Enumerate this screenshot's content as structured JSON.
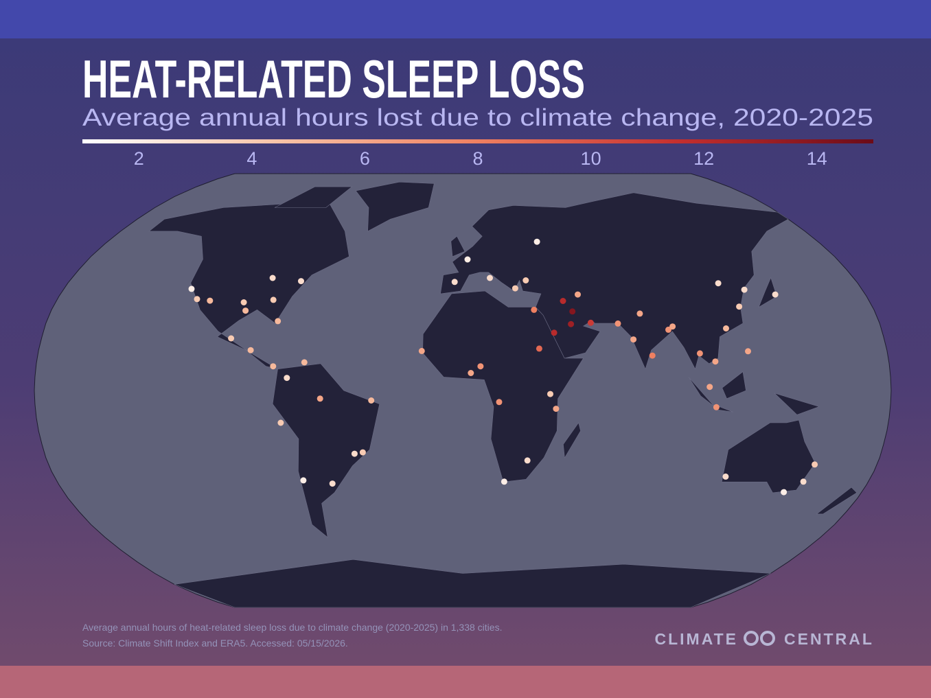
{
  "header": {
    "title": "HEAT-RELATED SLEEP LOSS",
    "subtitle": "Average annual hours lost due to climate change, 2020-2025"
  },
  "legend": {
    "lim": [
      1,
      15
    ],
    "ticks": [
      2,
      4,
      6,
      8,
      10,
      12,
      14
    ],
    "colors": [
      "#ffffff",
      "#f7c2a6",
      "#ef8061",
      "#c5302f",
      "#6b0b18"
    ]
  },
  "map": {
    "points": [
      {
        "lon": -74,
        "lat": 40.7,
        "value": 3
      },
      {
        "lon": -87.6,
        "lat": 41.9,
        "value": 3
      },
      {
        "lon": -118,
        "lat": 34,
        "value": 4
      },
      {
        "lon": -95,
        "lat": 29.7,
        "value": 5
      },
      {
        "lon": -80,
        "lat": 25.8,
        "value": 5
      },
      {
        "lon": -84,
        "lat": 33.7,
        "value": 4
      },
      {
        "lon": -96.8,
        "lat": 32.8,
        "value": 4
      },
      {
        "lon": -112,
        "lat": 33.4,
        "value": 5
      },
      {
        "lon": -122.4,
        "lat": 37.8,
        "value": 2
      },
      {
        "lon": -99,
        "lat": 19.4,
        "value": 4
      },
      {
        "lon": -90,
        "lat": 15,
        "value": 5
      },
      {
        "lon": -80,
        "lat": 9,
        "value": 5
      },
      {
        "lon": -43,
        "lat": -23,
        "value": 4
      },
      {
        "lon": -46.6,
        "lat": -23.5,
        "value": 3
      },
      {
        "lon": -58,
        "lat": -34.6,
        "value": 3
      },
      {
        "lon": -70.6,
        "lat": -33.4,
        "value": 2
      },
      {
        "lon": -77,
        "lat": -12,
        "value": 4
      },
      {
        "lon": -74,
        "lat": 4.7,
        "value": 3
      },
      {
        "lon": -60,
        "lat": -3,
        "value": 6
      },
      {
        "lon": -38.5,
        "lat": -3.7,
        "value": 5
      },
      {
        "lon": -66.9,
        "lat": 10.5,
        "value": 5
      },
      {
        "lon": -3.7,
        "lat": 40.4,
        "value": 3
      },
      {
        "lon": 2.3,
        "lat": 48.9,
        "value": 2
      },
      {
        "lon": 12.5,
        "lat": 41.9,
        "value": 3
      },
      {
        "lon": 37.6,
        "lat": 55.8,
        "value": 2
      },
      {
        "lon": 28.9,
        "lat": 41,
        "value": 4
      },
      {
        "lon": 23.7,
        "lat": 38,
        "value": 4
      },
      {
        "lon": 46.7,
        "lat": 24.7,
        "value": 13
      },
      {
        "lon": 47.9,
        "lat": 29.4,
        "value": 14
      },
      {
        "lon": 55.3,
        "lat": 25.2,
        "value": 11
      },
      {
        "lon": 44.4,
        "lat": 33.3,
        "value": 12
      },
      {
        "lon": 39.2,
        "lat": 21.5,
        "value": 12
      },
      {
        "lon": 31.2,
        "lat": 30,
        "value": 8
      },
      {
        "lon": 51.4,
        "lat": 35.7,
        "value": 6
      },
      {
        "lon": 3.4,
        "lat": 6.5,
        "value": 6
      },
      {
        "lon": -17.4,
        "lat": 14.7,
        "value": 6
      },
      {
        "lon": 32.5,
        "lat": 15.6,
        "value": 9
      },
      {
        "lon": 36.8,
        "lat": -1.3,
        "value": 4
      },
      {
        "lon": 28,
        "lat": -26,
        "value": 3
      },
      {
        "lon": 18.4,
        "lat": -33.9,
        "value": 2
      },
      {
        "lon": 15.3,
        "lat": -4.3,
        "value": 7
      },
      {
        "lon": 39.3,
        "lat": -6.8,
        "value": 6
      },
      {
        "lon": 7.5,
        "lat": 9,
        "value": 7
      },
      {
        "lon": 77.2,
        "lat": 28.6,
        "value": 6
      },
      {
        "lon": 72.9,
        "lat": 19,
        "value": 6
      },
      {
        "lon": 80.3,
        "lat": 13,
        "value": 8
      },
      {
        "lon": 88.4,
        "lat": 22.6,
        "value": 7
      },
      {
        "lon": 90.4,
        "lat": 23.8,
        "value": 6
      },
      {
        "lon": 67,
        "lat": 24.9,
        "value": 7
      },
      {
        "lon": 116.4,
        "lat": 39.9,
        "value": 3
      },
      {
        "lon": 121.5,
        "lat": 31.2,
        "value": 4
      },
      {
        "lon": 113.3,
        "lat": 23.1,
        "value": 5
      },
      {
        "lon": 139.7,
        "lat": 35.7,
        "value": 3
      },
      {
        "lon": 126.9,
        "lat": 37.5,
        "value": 3
      },
      {
        "lon": 100.5,
        "lat": 13.8,
        "value": 7
      },
      {
        "lon": 106.7,
        "lat": 10.8,
        "value": 6
      },
      {
        "lon": 106.8,
        "lat": -6.2,
        "value": 7
      },
      {
        "lon": 121,
        "lat": 14.6,
        "value": 6
      },
      {
        "lon": 103.8,
        "lat": 1.35,
        "value": 6
      },
      {
        "lon": 151.2,
        "lat": -33.9,
        "value": 3
      },
      {
        "lon": 144.9,
        "lat": -37.8,
        "value": 2
      },
      {
        "lon": 115.9,
        "lat": -32,
        "value": 3
      },
      {
        "lon": 153,
        "lat": -27.5,
        "value": 4
      }
    ]
  },
  "footer": {
    "note": "Average annual hours of heat-related sleep loss due to climate change (2020-2025) in 1,338 cities.",
    "source": "Source: Climate Shift Index and ERA5. Accessed: 05/15/2026.",
    "brand": [
      "CLIMATE",
      "CENTRAL"
    ]
  }
}
